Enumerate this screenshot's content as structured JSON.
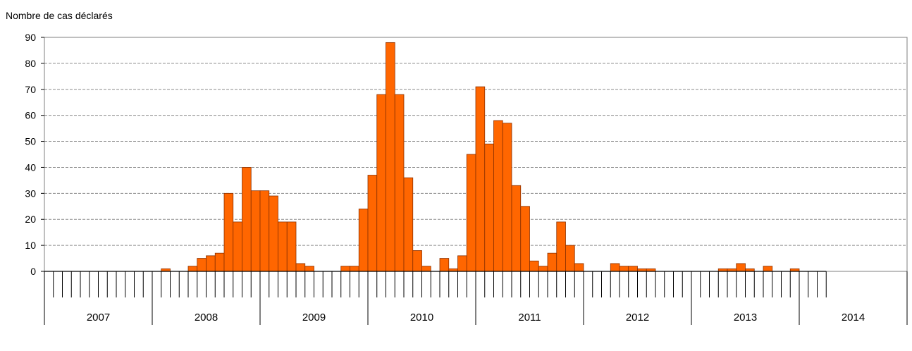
{
  "chart_data": {
    "type": "bar",
    "ylabel": "Nombre de cas déclarés",
    "xlabel": "",
    "ylim": [
      0,
      90
    ],
    "yticks": [
      0,
      10,
      20,
      30,
      40,
      50,
      60,
      70,
      80,
      90
    ],
    "grid": true,
    "x_unit": "month",
    "years": [
      "2007",
      "2008",
      "2009",
      "2010",
      "2011",
      "2012",
      "2013",
      "2014"
    ],
    "months_shown_2014": 3,
    "series": [
      {
        "values": [
          0,
          0,
          0,
          0,
          0,
          0,
          0,
          0,
          0,
          0,
          0,
          0,
          0,
          1,
          0,
          0,
          2,
          5,
          6,
          7,
          30,
          19,
          40,
          31,
          31,
          29,
          19,
          19,
          3,
          2,
          0,
          0,
          0,
          2,
          2,
          24,
          37,
          68,
          88,
          68,
          36,
          8,
          2,
          0,
          5,
          1,
          6,
          45,
          71,
          49,
          58,
          57,
          33,
          25,
          4,
          2,
          7,
          19,
          10,
          3,
          0,
          0,
          0,
          3,
          2,
          2,
          1,
          1,
          0,
          0,
          0,
          0,
          0,
          0,
          0,
          1,
          1,
          3,
          1,
          0,
          2,
          0,
          0,
          1,
          0,
          0,
          0
        ],
        "color": "#FF6600"
      }
    ]
  }
}
